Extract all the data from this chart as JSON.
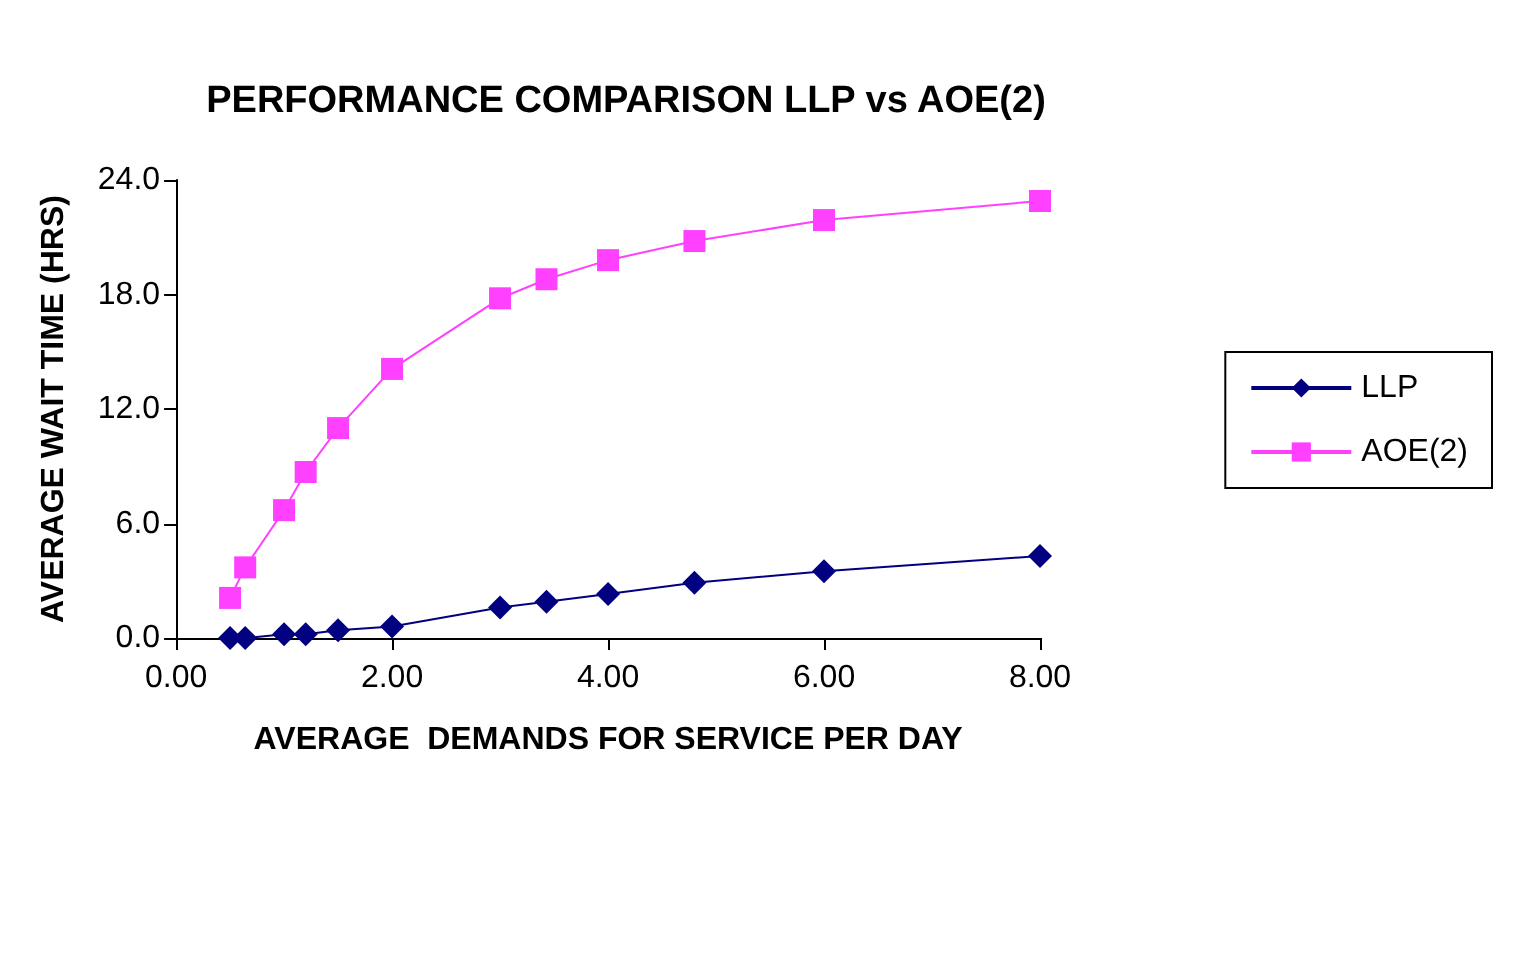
{
  "chart_data": {
    "type": "line",
    "title": "PERFORMANCE COMPARISON LLP vs AOE(2)",
    "xlabel": "AVERAGE  DEMANDS FOR SERVICE PER DAY",
    "ylabel": "AVERAGE WAIT TIME (HRS)",
    "x": [
      0.5,
      0.64,
      1.0,
      1.2,
      1.5,
      2.0,
      3.0,
      3.43,
      4.0,
      4.8,
      6.0,
      8.0
    ],
    "series": [
      {
        "name": "LLP",
        "color": "#000080",
        "marker": "diamond",
        "values": [
          0,
          0,
          0.2,
          0.2,
          0.4,
          0.6,
          1.6,
          1.9,
          2.3,
          2.9,
          3.5,
          4.3
        ]
      },
      {
        "name": "AOE(2)",
        "color": "#ff40ff",
        "marker": "square",
        "values": [
          2.1,
          3.7,
          6.7,
          8.7,
          11.0,
          14.1,
          17.8,
          18.8,
          19.8,
          20.8,
          21.9,
          22.9
        ]
      }
    ],
    "xlim": [
      0,
      8
    ],
    "xticks": [
      {
        "value": 0,
        "label": "0.00"
      },
      {
        "value": 2,
        "label": "2.00"
      },
      {
        "value": 4,
        "label": "4.00"
      },
      {
        "value": 6,
        "label": "6.00"
      },
      {
        "value": 8,
        "label": "8.00"
      }
    ],
    "ylim": [
      0,
      24
    ],
    "yticks": [
      {
        "value": 0,
        "label": "0.0"
      },
      {
        "value": 6,
        "label": "6.0"
      },
      {
        "value": 12,
        "label": "12.0"
      },
      {
        "value": 18,
        "label": "18.0"
      },
      {
        "value": 24,
        "label": "24.0"
      }
    ],
    "grid": false,
    "legend": "right",
    "line_style": "solid"
  }
}
